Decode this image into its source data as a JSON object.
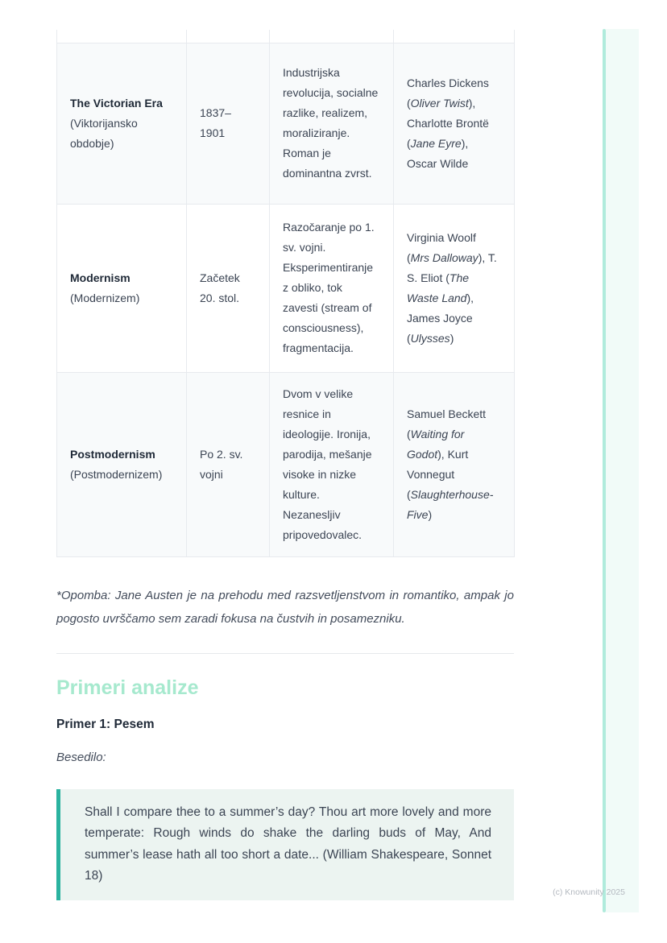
{
  "table": {
    "rows": [
      {
        "era_name": "The Victorian Era",
        "era_sub": "(Viktorijansko obdobje)",
        "period": "1837–\n1901",
        "characteristics": "Industrijska revolucija, socialne razlike, realizem, moraliziranje. Roman je dominantna zvrst.",
        "authors": [
          {
            "t": "Charles Dickens ("
          },
          {
            "t": "Oliver Twist",
            "i": true
          },
          {
            "t": "), Charlotte Brontë ("
          },
          {
            "t": "Jane Eyre",
            "i": true
          },
          {
            "t": "), Oscar Wilde"
          }
        ]
      },
      {
        "era_name": "Modernism",
        "era_sub": "(Modernizem)",
        "period": "Začetek\n20. stol.",
        "characteristics": "Razočaranje po 1. sv. vojni. Eksperimentiranje z obliko, tok zavesti (stream of consciousness), fragmentacija.",
        "authors": [
          {
            "t": "Virginia Woolf ("
          },
          {
            "t": "Mrs Dalloway",
            "i": true
          },
          {
            "t": "), T. S. Eliot ("
          },
          {
            "t": "The Waste Land",
            "i": true
          },
          {
            "t": "), James Joyce ("
          },
          {
            "t": "Ulysses",
            "i": true
          },
          {
            "t": ")"
          }
        ]
      },
      {
        "era_name": "Postmodernism",
        "era_sub": "(Postmodernizem)",
        "period": "Po 2. sv.\nvojni",
        "characteristics": "Dvom v velike resnice in ideologije. Ironija, parodija, mešanje visoke in nizke kulture. Nezanesljiv pripovedovalec.",
        "authors": [
          {
            "t": "Samuel Beckett ("
          },
          {
            "t": "Waiting for Godot",
            "i": true
          },
          {
            "t": "), Kurt Vonnegut ("
          },
          {
            "t": "Slaughterhouse-Five",
            "i": true
          },
          {
            "t": ")"
          }
        ]
      }
    ]
  },
  "note": {
    "text": "*Opomba: Jane Austen je na prehodu med razsvetljenstvom in romantiko, ampak jo pogosto uvrščamo sem zaradi fokusa na čustvih in posamezniku."
  },
  "section": {
    "heading": "Primeri analize",
    "example_heading": "Primer 1: Pesem",
    "text_label": "Besedilo:"
  },
  "quote": {
    "text": "Shall I compare thee to a summer’s day? Thou art more lovely and more temperate: Rough winds do shake the darling buds of May, And summer’s lease hath all too short a date... (William Shakespeare, Sonnet 18)"
  },
  "footer": {
    "copyright": "(c) Knowunity 2025"
  },
  "colors": {
    "accent_teal": "#2ab3a0",
    "heading_mint": "#a6e9ce",
    "quote_bg": "#ecf4f1",
    "shaded_row_bg": "#f8fafb",
    "edge_line": "#b0ebdc",
    "edge_fill": "#f1fbf8"
  }
}
